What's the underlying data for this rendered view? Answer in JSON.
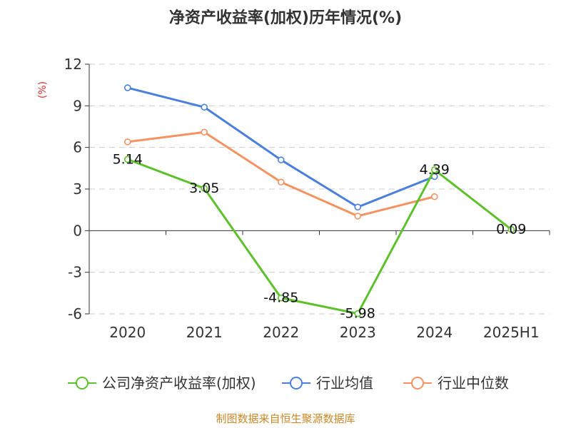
{
  "chart_data": {
    "type": "line",
    "title": "净资产收益率(加权)历年情况(%)",
    "ylabel": "(%)",
    "categories": [
      "2020",
      "2021",
      "2022",
      "2023",
      "2024",
      "2025H1"
    ],
    "ylim": [
      -6,
      12
    ],
    "yticks": [
      12,
      9,
      6,
      3,
      0,
      -3,
      -6
    ],
    "grid": true,
    "legend_position": "bottom",
    "series": [
      {
        "name": "公司净资产收益率(加权)",
        "color": "#5cc12a",
        "values": [
          5.14,
          3.05,
          -4.85,
          -5.98,
          4.39,
          0.09
        ],
        "labels": [
          "5.14",
          "3.05",
          "-4.85",
          "-5.98",
          "4.39",
          "0.09"
        ]
      },
      {
        "name": "行业均值",
        "color": "#4a7fdd",
        "values": [
          10.3,
          8.9,
          5.1,
          1.7,
          3.9,
          null
        ]
      },
      {
        "name": "行业中位数",
        "color": "#f59262",
        "values": [
          6.4,
          7.1,
          3.5,
          1.05,
          2.45,
          null
        ]
      }
    ],
    "source": "制图数据来自恒生聚源数据库",
    "colors": {
      "axis": "#333333",
      "grid": "#cccccc",
      "unit": "#e03030",
      "source": "#c8882a"
    }
  }
}
